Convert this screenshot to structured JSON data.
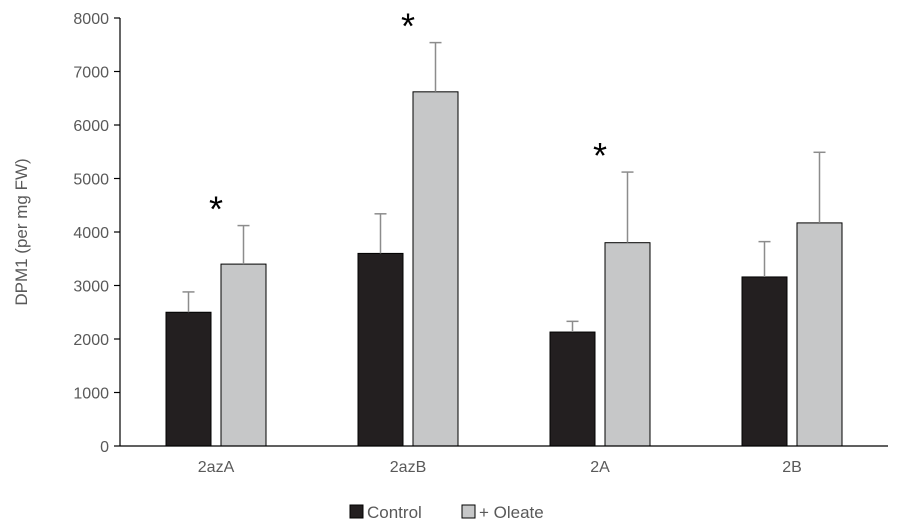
{
  "chart_data": {
    "type": "bar",
    "categories": [
      "2azA",
      "2azB",
      "2A",
      "2B"
    ],
    "series": [
      {
        "name": "Control",
        "color": "#231f20",
        "values": [
          2500,
          3600,
          2130,
          3160
        ],
        "errors": [
          380,
          740,
          200,
          660
        ]
      },
      {
        "name": "+ Oleate",
        "color": "#c6c7c8",
        "values": [
          3400,
          6620,
          3800,
          4170
        ],
        "errors": [
          720,
          920,
          1320,
          1320
        ]
      }
    ],
    "significance": [
      {
        "category": "2azA",
        "label": "*"
      },
      {
        "category": "2azB",
        "label": "*"
      },
      {
        "category": "2A",
        "label": "*"
      }
    ],
    "title": "",
    "xlabel": "",
    "ylabel": "DPM1 (per mg FW)",
    "ylim": [
      0,
      8000
    ],
    "yticks": [
      0,
      1000,
      2000,
      3000,
      4000,
      5000,
      6000,
      7000,
      8000
    ],
    "grid": false,
    "legend_position": "bottom-center"
  }
}
